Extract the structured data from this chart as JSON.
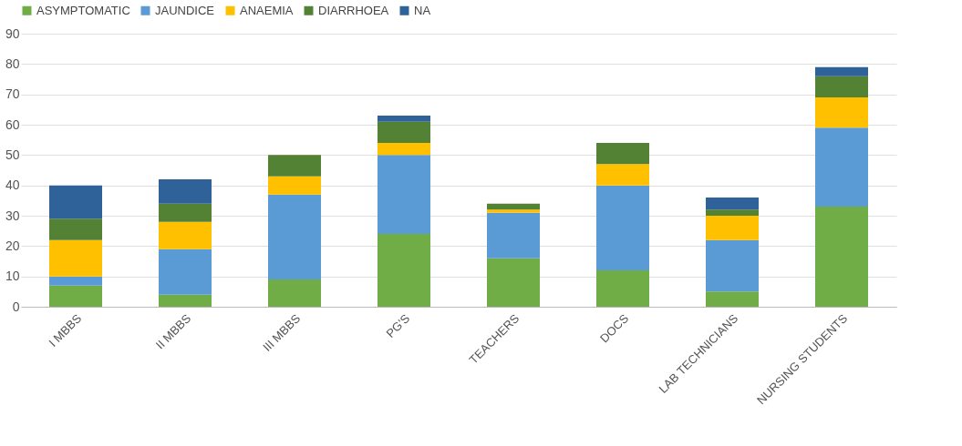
{
  "chart_data": {
    "type": "bar",
    "stacked": true,
    "categories": [
      "I MBBS",
      "II MBBS",
      "III MBBS",
      "PG'S",
      "TEACHERS",
      "DOCS",
      "LAB TECHNICIANS",
      "NURSING STUDENTS"
    ],
    "series": [
      {
        "name": "ASYMPTOMATIC",
        "color": "#70ad47",
        "values": [
          7,
          4,
          9,
          24,
          16,
          12,
          5,
          33
        ]
      },
      {
        "name": "JAUNDICE",
        "color": "#5b9bd5",
        "values": [
          3,
          15,
          28,
          26,
          15,
          28,
          17,
          26
        ]
      },
      {
        "name": "ANAEMIA",
        "color": "#ffc000",
        "values": [
          12,
          9,
          6,
          4,
          1,
          7,
          8,
          10
        ]
      },
      {
        "name": "DIARRHOEA",
        "color": "#548235",
        "values": [
          7,
          6,
          7,
          7,
          2,
          7,
          2,
          7
        ]
      },
      {
        "name": "NA",
        "color": "#2f6298",
        "values": [
          11,
          8,
          0,
          2,
          0,
          0,
          4,
          3
        ]
      }
    ],
    "ylim": [
      0,
      90
    ],
    "yticks": [
      0,
      10,
      20,
      30,
      40,
      50,
      60,
      70,
      80,
      90
    ],
    "grid": "y",
    "legend": "top"
  }
}
